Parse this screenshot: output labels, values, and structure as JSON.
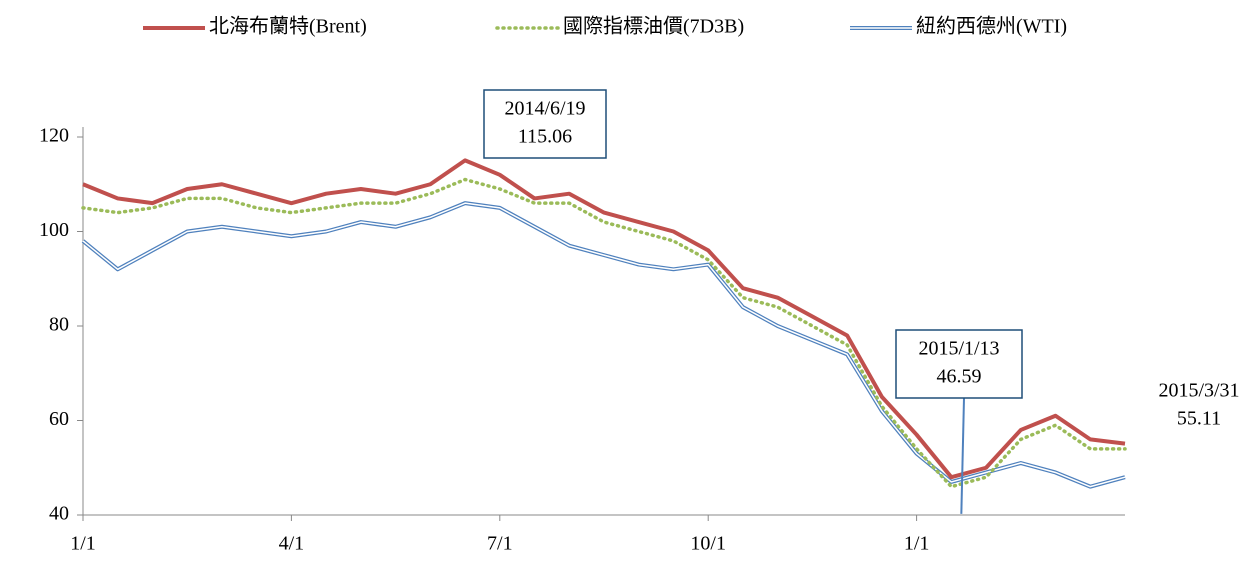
{
  "chart_data": {
    "type": "line",
    "categories": [
      "1/1",
      null,
      null,
      null,
      null,
      null,
      "4/1",
      null,
      null,
      null,
      null,
      null,
      "7/1",
      null,
      null,
      null,
      null,
      null,
      "10/1",
      null,
      null,
      null,
      null,
      null,
      "1/1",
      null,
      null,
      null,
      null,
      null,
      null
    ],
    "series": [
      {
        "name": "北海布蘭特(Brent)",
        "color": "#c0504d",
        "style": "solid",
        "values": [
          110,
          107,
          106,
          109,
          110,
          108,
          106,
          108,
          109,
          108,
          110,
          115.06,
          112,
          107,
          108,
          104,
          102,
          100,
          96,
          88,
          86,
          82,
          78,
          65,
          57,
          48,
          50,
          58,
          61,
          56,
          55.11
        ]
      },
      {
        "name": "國際指標油價(7D3B)",
        "color": "#9bbb59",
        "style": "dotted",
        "values": [
          105,
          104,
          105,
          107,
          107,
          105,
          104,
          105,
          106,
          106,
          108,
          111,
          109,
          106,
          106,
          102,
          100,
          98,
          94,
          86,
          84,
          80,
          76,
          63,
          54,
          46,
          48,
          56,
          59,
          54,
          54
        ]
      },
      {
        "name": "紐約西德州(WTI)",
        "color": "#4f81bd",
        "style": "double",
        "values": [
          98,
          92,
          96,
          100,
          101,
          100,
          99,
          100,
          102,
          101,
          103,
          106,
          105,
          101,
          97,
          95,
          93,
          92,
          93,
          84,
          80,
          77,
          74,
          62,
          53,
          47,
          49,
          51,
          49,
          46,
          48
        ]
      }
    ],
    "ylim": [
      40,
      120
    ],
    "yticks": [
      40,
      60,
      80,
      100,
      120
    ],
    "grid": false,
    "legend": "top",
    "annotations": [
      {
        "date": "2014/6/19",
        "value": 115.06,
        "index": 11,
        "series": 0
      },
      {
        "date": "2015/1/13",
        "value": 46.59,
        "index": 25,
        "series": 0
      },
      {
        "date": "2015/3/31",
        "value": 55.11,
        "index": 30,
        "series": 0
      }
    ]
  }
}
